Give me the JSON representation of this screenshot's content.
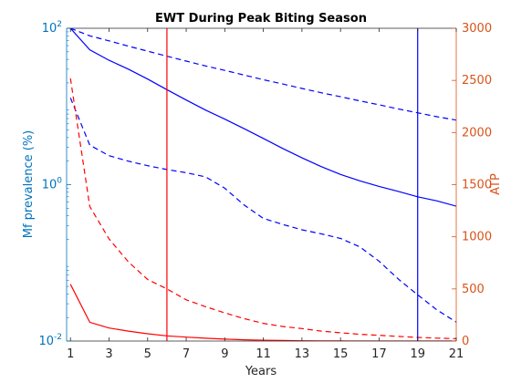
{
  "chart_data": {
    "type": "line",
    "title": "EWT During Peak Biting Season",
    "xlabel": "Years",
    "ylabel_left": "Mf prevalence (%)",
    "ylabel_right": "ATP",
    "xlim": [
      0.8,
      21
    ],
    "xticks": [
      1,
      3,
      5,
      7,
      9,
      11,
      13,
      15,
      17,
      19,
      21
    ],
    "ylim_left": [
      0.01,
      100
    ],
    "yscale_left": "log",
    "yticks_left": [
      {
        "value": 0.01,
        "base": "10",
        "exp": "-2"
      },
      {
        "value": 1,
        "base": "10",
        "exp": "0"
      },
      {
        "value": 100,
        "base": "10",
        "exp": "2"
      }
    ],
    "ylim_right": [
      0,
      3000
    ],
    "yticks_right": [
      0,
      500,
      1000,
      1500,
      2000,
      2500,
      3000
    ],
    "colors": {
      "left_axis": "#0072BD",
      "right_axis": "#D95319",
      "mf_series": "#0000FF",
      "atp_series": "#FF0000"
    },
    "series": [
      {
        "axis": "left",
        "color": "#0000FF",
        "style": "solid",
        "x": [
          1,
          2,
          3,
          4,
          5,
          6,
          7,
          8,
          9,
          10,
          11,
          12,
          13,
          14,
          15,
          16,
          17,
          18,
          19,
          20,
          21
        ],
        "y": [
          100,
          53,
          39,
          30,
          22.4,
          16.4,
          12.1,
          9.0,
          6.9,
          5.2,
          3.9,
          2.9,
          2.2,
          1.7,
          1.35,
          1.12,
          0.95,
          0.82,
          0.7,
          0.62,
          0.53
        ]
      },
      {
        "axis": "left",
        "color": "#0000FF",
        "style": "dashed",
        "x": [
          1,
          2,
          3,
          4,
          5,
          6,
          7,
          8,
          9,
          10,
          11,
          12,
          13,
          14,
          15,
          16,
          17,
          18,
          19,
          20,
          21
        ],
        "y": [
          100,
          80,
          69,
          59,
          51,
          44,
          38,
          33,
          28.9,
          25.2,
          22,
          19.4,
          17,
          15,
          13.3,
          11.8,
          10.5,
          9.3,
          8.3,
          7.4,
          6.7
        ]
      },
      {
        "axis": "left",
        "color": "#0000FF",
        "style": "dashed",
        "x": [
          1,
          2,
          3,
          4,
          5,
          6,
          7,
          8,
          9,
          10,
          11,
          12,
          13,
          14,
          15,
          16,
          17,
          18,
          19,
          20,
          21
        ],
        "y": [
          12.9,
          3.2,
          2.35,
          2.0,
          1.75,
          1.56,
          1.42,
          1.26,
          0.9,
          0.55,
          0.37,
          0.31,
          0.265,
          0.235,
          0.205,
          0.16,
          0.105,
          0.062,
          0.039,
          0.025,
          0.0175
        ]
      },
      {
        "axis": "right",
        "color": "#FF0000",
        "style": "dashed",
        "x": [
          1,
          2,
          3,
          4,
          5,
          6,
          7,
          8,
          9,
          10,
          11,
          12,
          13,
          14,
          15,
          16,
          17,
          18,
          19,
          20,
          21
        ],
        "y": [
          2520,
          1290,
          980,
          760,
          590,
          500,
          395,
          330,
          270,
          215,
          170,
          140,
          120,
          95,
          80,
          65,
          55,
          45,
          35,
          28,
          23
        ]
      },
      {
        "axis": "right",
        "color": "#FF0000",
        "style": "solid",
        "x": [
          1,
          2,
          3,
          4,
          5,
          6,
          7,
          8,
          9,
          10,
          11,
          12,
          13,
          14,
          15,
          16,
          17,
          18,
          19,
          20,
          21
        ],
        "y": [
          545,
          180,
          125,
          95,
          70,
          50,
          38,
          27,
          18,
          12,
          8,
          5,
          3,
          2,
          1,
          0,
          0,
          0,
          0,
          0,
          0
        ]
      }
    ],
    "vertical_lines": [
      {
        "x": 6,
        "color": "#FF0000"
      },
      {
        "x": 19,
        "color": "#0000FF"
      }
    ]
  }
}
